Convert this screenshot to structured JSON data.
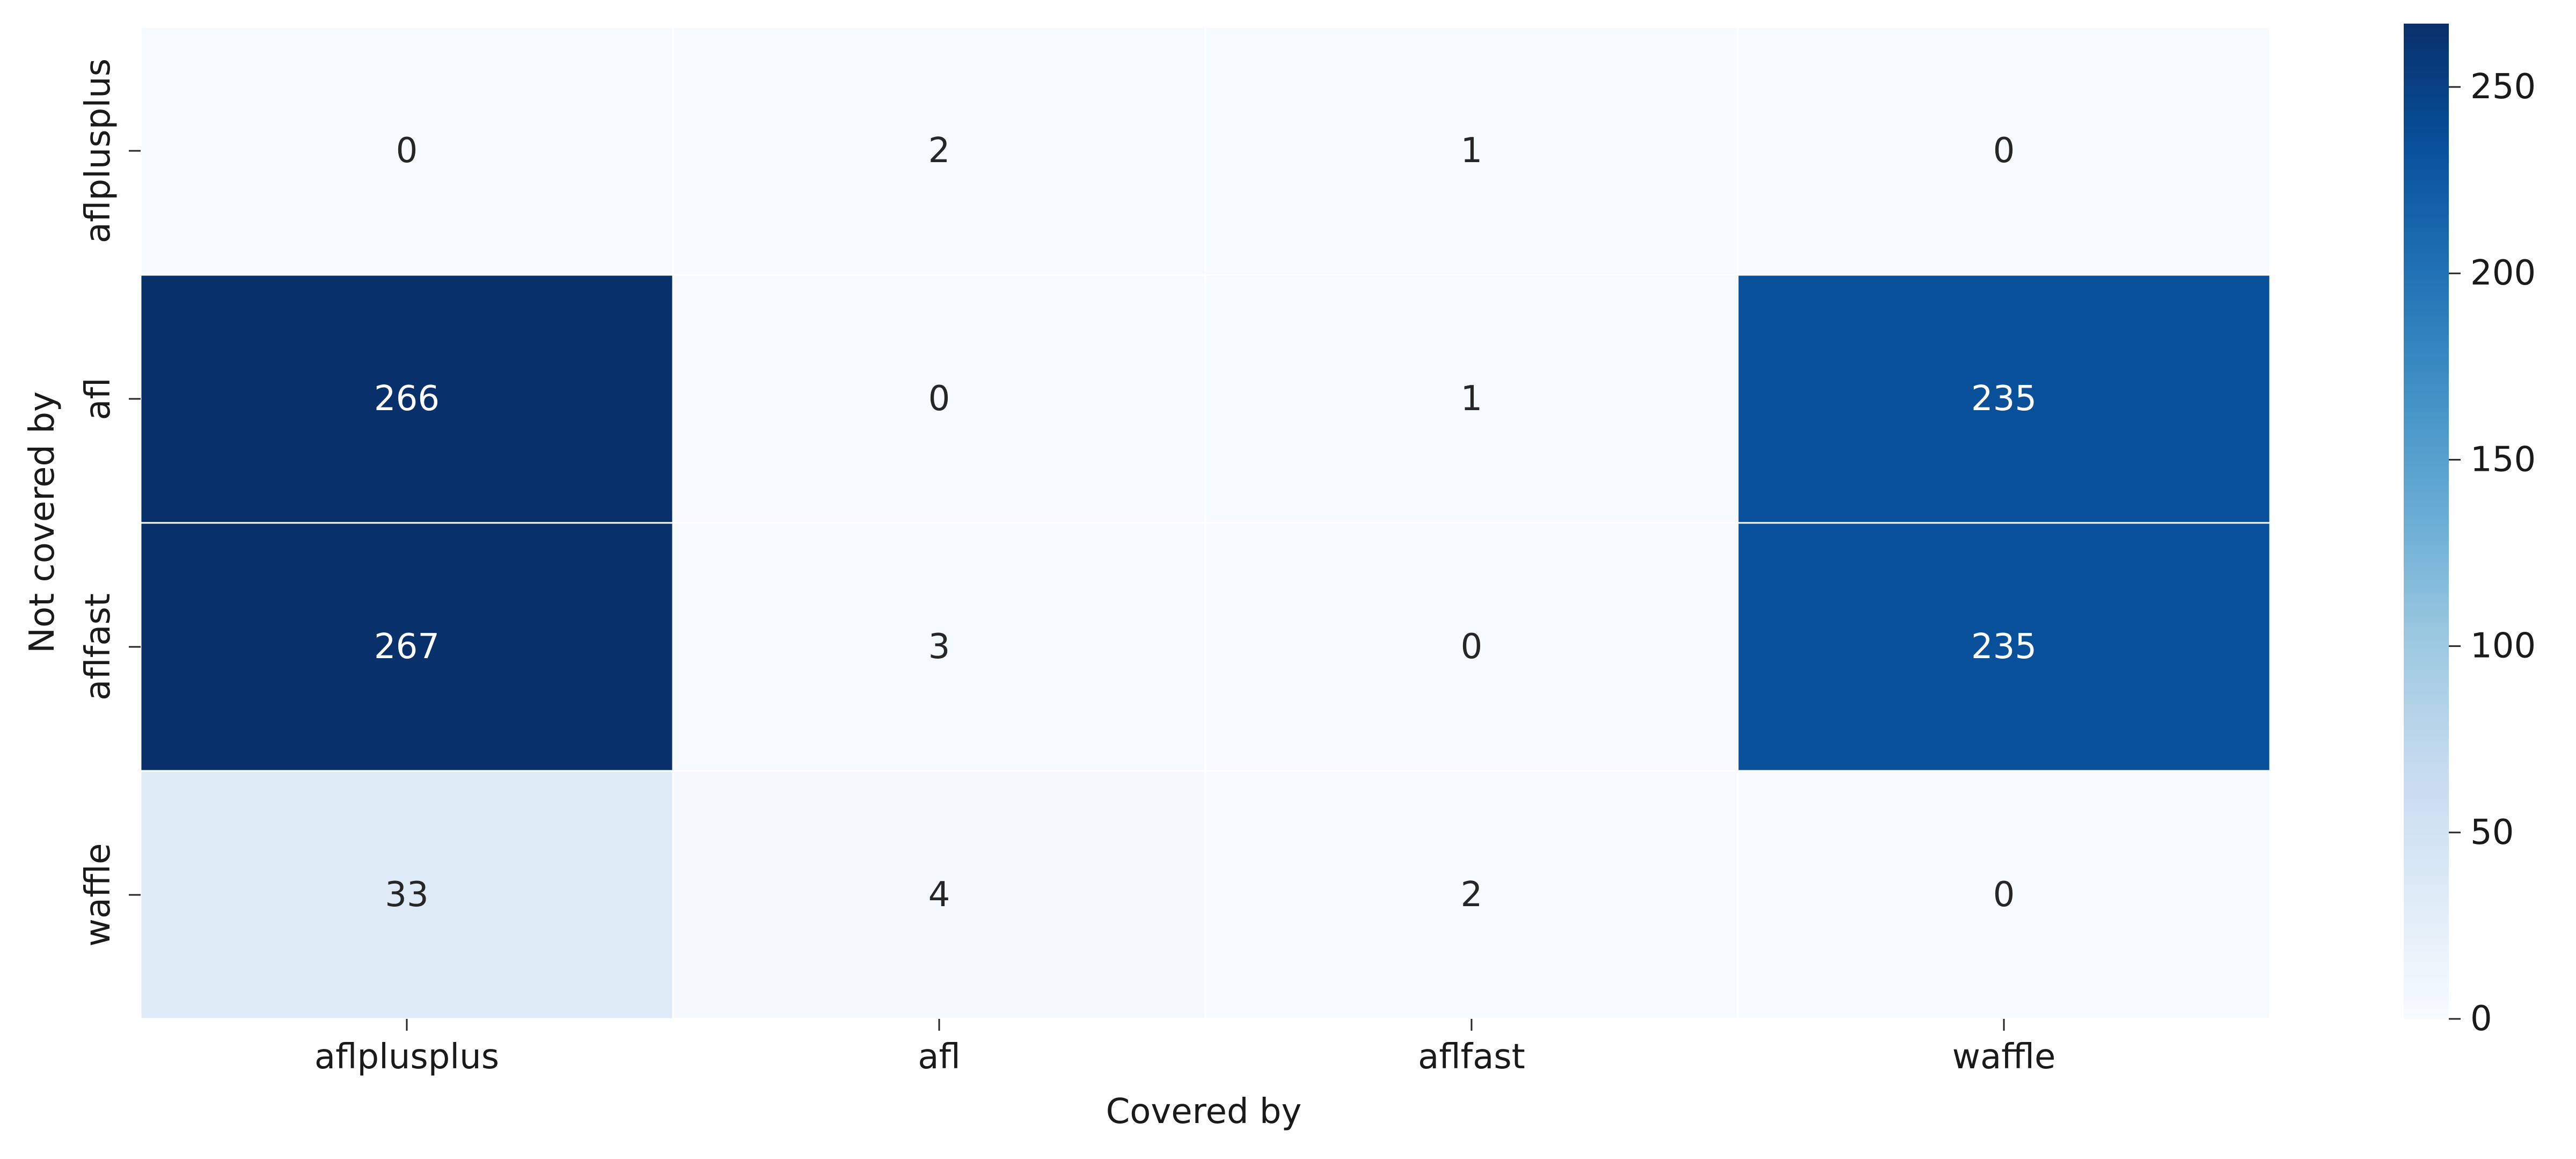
{
  "chart_data": {
    "type": "heatmap",
    "xlabel": "Covered by",
    "ylabel": "Not covered by",
    "x_categories": [
      "aflplusplus",
      "afl",
      "aflfast",
      "waffle"
    ],
    "y_categories": [
      "aflplusplus",
      "afl",
      "aflfast",
      "waffle"
    ],
    "values": [
      [
        0,
        2,
        1,
        0
      ],
      [
        266,
        0,
        1,
        235
      ],
      [
        267,
        3,
        0,
        235
      ],
      [
        33,
        4,
        2,
        0
      ]
    ],
    "colormap": "Blues",
    "vmin": 0,
    "vmax": 267,
    "colorbar_ticks": [
      0,
      50,
      100,
      150,
      200,
      250
    ],
    "grid": true,
    "annotations": true
  }
}
